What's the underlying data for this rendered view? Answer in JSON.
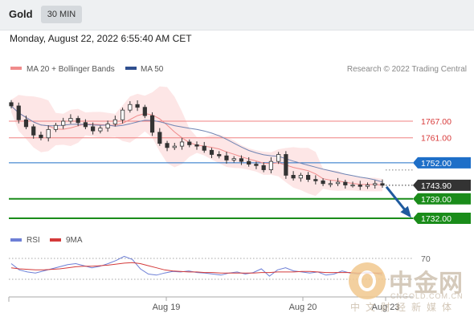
{
  "header": {
    "title": "Gold",
    "timeframe": "30 MIN"
  },
  "date_line": "Monday, August 22, 2022 6:55:40 AM CET",
  "legend": {
    "ma20_label": "MA 20 + Bollinger Bands",
    "ma50_label": "MA 50",
    "credit": "Research © 2022 Trading Central",
    "rsi_label": "RSI",
    "rsi_ma_label": "9MA"
  },
  "colors": {
    "candle": "#333333",
    "bollinger_fill": "#fde3e3",
    "ma20": "#f08c8c",
    "ma50": "#6f84b3",
    "resistance": "#f08080",
    "pivot": "#1e6fc8",
    "support": "#1a8c1a",
    "current": "#333333",
    "forecast_arrow": "#1f5a9e",
    "rsi": "#6d7fd6",
    "rsi_ma": "#d43a3a"
  },
  "chart_data": [
    {
      "type": "line",
      "title": "Gold",
      "timeframe": "30 MIN",
      "x_labels": [
        "Aug 19",
        "Aug 20",
        "Aug 23"
      ],
      "y_axis_labels": [
        "1767.00",
        "1761.00",
        "1752.00",
        "1743.90",
        "1739.00",
        "1732.00"
      ],
      "levels": [
        {
          "label": "1767.00",
          "value": 1767.0,
          "kind": "resistance"
        },
        {
          "label": "1761.00",
          "value": 1761.0,
          "kind": "resistance"
        },
        {
          "label": "1752.00",
          "value": 1752.0,
          "kind": "pivot"
        },
        {
          "label": "1743.90",
          "value": 1743.9,
          "kind": "current"
        },
        {
          "label": "1739.00",
          "value": 1739.0,
          "kind": "support"
        },
        {
          "label": "1732.00",
          "value": 1732.0,
          "kind": "support"
        }
      ],
      "series": [
        {
          "name": "MA 20 + Bollinger Bands"
        },
        {
          "name": "MA 50"
        }
      ],
      "close_series": [
        1772.5,
        1767.5,
        1765.0,
        1762.0,
        1761.0,
        1764.0,
        1765.5,
        1767.0,
        1768.0,
        1766.5,
        1765.0,
        1763.5,
        1764.5,
        1766.0,
        1767.5,
        1771.0,
        1773.0,
        1772.0,
        1769.0,
        1763.0,
        1759.0,
        1757.5,
        1758.0,
        1759.5,
        1758.5,
        1758.0,
        1756.5,
        1755.0,
        1754.5,
        1753.0,
        1753.5,
        1752.5,
        1751.5,
        1751.0,
        1749.5,
        1752.5,
        1755.0,
        1747.5,
        1746.5,
        1747.5,
        1746.0,
        1745.5,
        1744.5,
        1744.5,
        1745.0,
        1744.0,
        1744.0,
        1743.5,
        1744.0,
        1744.5,
        1743.9
      ],
      "forecast": {
        "from": 1743.9,
        "to": 1732.0
      }
    },
    {
      "type": "line",
      "title": "RSI",
      "y_axis_labels": [
        "70"
      ],
      "series": [
        {
          "name": "RSI",
          "values": [
            60,
            48,
            44,
            42,
            46,
            50,
            54,
            58,
            60,
            56,
            52,
            55,
            60,
            66,
            74,
            68,
            50,
            40,
            38,
            42,
            45,
            44,
            46,
            43,
            42,
            40,
            38,
            42,
            44,
            40,
            43,
            50,
            36,
            48,
            52,
            46,
            44,
            42,
            44,
            38,
            40,
            46,
            42,
            40,
            44,
            42,
            38
          ]
        },
        {
          "name": "9MA",
          "values": [
            52,
            50,
            49,
            48,
            48,
            49,
            50,
            52,
            54,
            55,
            55,
            56,
            57,
            59,
            61,
            62,
            60,
            56,
            52,
            48,
            46,
            45,
            44,
            44,
            43,
            43,
            42,
            42,
            42,
            42,
            42,
            43,
            43,
            44,
            44,
            44,
            45,
            45,
            44,
            43,
            43,
            43,
            43,
            42,
            42,
            42,
            42
          ]
        }
      ]
    }
  ]
}
